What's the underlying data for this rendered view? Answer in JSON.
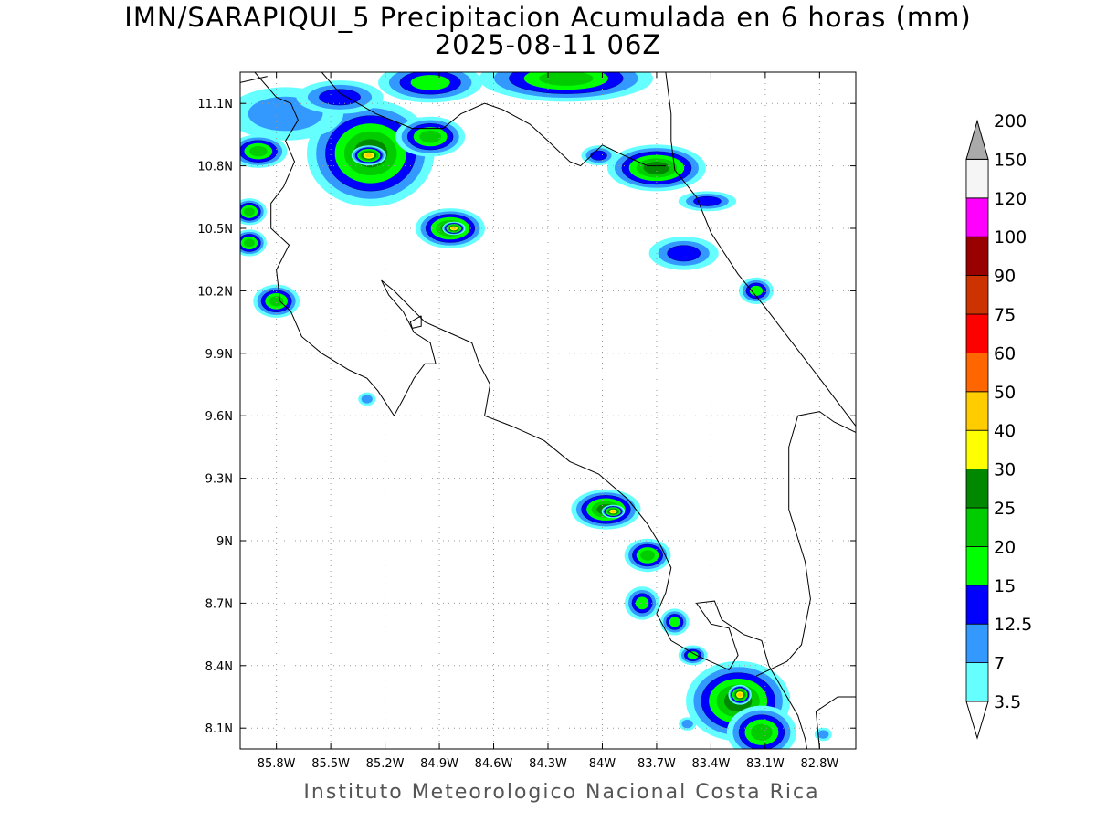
{
  "title_line1": "IMN/SARAPIQUI_5 Precipitacion Acumulada en 6 horas (mm)",
  "title_line2": "2025-08-11 06Z",
  "footer": "Instituto Meteorologico Nacional Costa Rica",
  "map": {
    "lon_min": -86.0,
    "lon_max": -82.6,
    "lat_min": 8.0,
    "lat_max": 11.25,
    "lon_ticks": [
      {
        "value": -85.8,
        "label": "85.8W"
      },
      {
        "value": -85.5,
        "label": "85.5W"
      },
      {
        "value": -85.2,
        "label": "85.2W"
      },
      {
        "value": -84.9,
        "label": "84.9W"
      },
      {
        "value": -84.6,
        "label": "84.6W"
      },
      {
        "value": -84.3,
        "label": "84.3W"
      },
      {
        "value": -84.0,
        "label": "84W"
      },
      {
        "value": -83.7,
        "label": "83.7W"
      },
      {
        "value": -83.4,
        "label": "83.4W"
      },
      {
        "value": -83.1,
        "label": "83.1W"
      },
      {
        "value": -82.8,
        "label": "82.8W"
      }
    ],
    "lat_ticks": [
      {
        "value": 11.1,
        "label": "11.1N"
      },
      {
        "value": 10.8,
        "label": "10.8N"
      },
      {
        "value": 10.5,
        "label": "10.5N"
      },
      {
        "value": 10.2,
        "label": "10.2N"
      },
      {
        "value": 9.9,
        "label": "9.9N"
      },
      {
        "value": 9.6,
        "label": "9.6N"
      },
      {
        "value": 9.3,
        "label": "9.3N"
      },
      {
        "value": 9.0,
        "label": "9N"
      },
      {
        "value": 8.7,
        "label": "8.7N"
      },
      {
        "value": 8.4,
        "label": "8.4N"
      },
      {
        "value": 8.1,
        "label": "8.1N"
      }
    ],
    "coastlines": [
      [
        [
          -85.92,
          11.25
        ],
        [
          -85.8,
          11.13
        ],
        [
          -85.72,
          11.1
        ],
        [
          -85.68,
          11.02
        ],
        [
          -85.75,
          10.92
        ],
        [
          -85.7,
          10.82
        ],
        [
          -85.76,
          10.7
        ],
        [
          -85.83,
          10.62
        ],
        [
          -85.83,
          10.5
        ],
        [
          -85.73,
          10.42
        ],
        [
          -85.8,
          10.3
        ],
        [
          -85.78,
          10.15
        ],
        [
          -85.72,
          10.1
        ],
        [
          -85.66,
          9.98
        ],
        [
          -85.55,
          9.9
        ],
        [
          -85.4,
          9.82
        ],
        [
          -85.3,
          9.78
        ],
        [
          -85.24,
          9.72
        ],
        [
          -85.15,
          9.6
        ],
        [
          -85.1,
          9.68
        ],
        [
          -85.04,
          9.78
        ],
        [
          -84.98,
          9.85
        ],
        [
          -84.92,
          9.85
        ],
        [
          -84.95,
          9.95
        ],
        [
          -85.04,
          10.0
        ],
        [
          -85.1,
          10.1
        ],
        [
          -85.18,
          10.18
        ],
        [
          -85.22,
          10.25
        ],
        [
          -85.15,
          10.2
        ],
        [
          -84.98,
          10.05
        ],
        [
          -84.85,
          10.0
        ],
        [
          -84.72,
          9.95
        ],
        [
          -84.68,
          9.85
        ],
        [
          -84.62,
          9.75
        ],
        [
          -84.65,
          9.6
        ],
        [
          -84.5,
          9.55
        ],
        [
          -84.32,
          9.48
        ],
        [
          -84.18,
          9.38
        ],
        [
          -84.02,
          9.32
        ],
        [
          -83.86,
          9.2
        ],
        [
          -83.75,
          9.08
        ],
        [
          -83.68,
          8.98
        ],
        [
          -83.62,
          8.87
        ],
        [
          -83.65,
          8.75
        ],
        [
          -83.7,
          8.65
        ],
        [
          -83.62,
          8.52
        ],
        [
          -83.48,
          8.45
        ],
        [
          -83.3,
          8.38
        ],
        [
          -83.25,
          8.45
        ],
        [
          -83.3,
          8.58
        ],
        [
          -83.4,
          8.6
        ],
        [
          -83.48,
          8.7
        ],
        [
          -83.38,
          8.71
        ],
        [
          -83.34,
          8.62
        ],
        [
          -83.22,
          8.55
        ],
        [
          -83.12,
          8.52
        ],
        [
          -83.08,
          8.4
        ],
        [
          -83.0,
          8.28
        ],
        [
          -82.92,
          8.16
        ],
        [
          -82.88,
          8.05
        ],
        [
          -82.87,
          8.0
        ]
      ],
      [
        [
          -82.8,
          8.0
        ],
        [
          -82.82,
          8.18
        ],
        [
          -82.7,
          8.25
        ],
        [
          -82.6,
          8.25
        ]
      ],
      [
        [
          -83.15,
          8.35
        ],
        [
          -82.98,
          8.42
        ],
        [
          -82.9,
          8.5
        ],
        [
          -82.85,
          8.72
        ],
        [
          -82.88,
          8.9
        ],
        [
          -82.97,
          9.15
        ],
        [
          -82.97,
          9.45
        ],
        [
          -82.92,
          9.6
        ],
        [
          -82.8,
          9.62
        ],
        [
          -82.72,
          9.57
        ],
        [
          -82.6,
          9.52
        ]
      ],
      [
        [
          -86.0,
          11.2
        ],
        [
          -85.85,
          11.23
        ]
      ],
      [
        [
          -85.55,
          11.25
        ],
        [
          -85.45,
          11.15
        ],
        [
          -85.25,
          11.05
        ],
        [
          -85.05,
          10.98
        ],
        [
          -84.88,
          10.98
        ],
        [
          -84.78,
          11.05
        ],
        [
          -84.65,
          11.1
        ],
        [
          -84.55,
          11.07
        ],
        [
          -84.4,
          11.0
        ],
        [
          -84.3,
          10.92
        ],
        [
          -84.18,
          10.82
        ],
        [
          -84.12,
          10.8
        ],
        [
          -84.0,
          10.9
        ],
        [
          -83.88,
          10.85
        ],
        [
          -83.75,
          10.8
        ],
        [
          -83.65,
          10.8
        ]
      ],
      [
        [
          -83.65,
          11.25
        ],
        [
          -83.62,
          11.05
        ],
        [
          -83.62,
          10.92
        ],
        [
          -83.6,
          10.78
        ],
        [
          -83.48,
          10.65
        ],
        [
          -83.4,
          10.48
        ],
        [
          -83.25,
          10.28
        ],
        [
          -83.1,
          10.12
        ],
        [
          -82.95,
          9.95
        ],
        [
          -82.8,
          9.78
        ],
        [
          -82.6,
          9.55
        ]
      ]
    ],
    "lakes": [
      [
        [
          -85.0,
          10.08
        ],
        [
          -85.06,
          10.05
        ],
        [
          -85.05,
          10.02
        ],
        [
          -85.0,
          10.03
        ],
        [
          -85.0,
          10.08
        ]
      ]
    ],
    "precip_cells": [
      {
        "lon": -85.28,
        "lat": 10.86,
        "rx": 0.22,
        "ry": 0.16,
        "level": 25
      },
      {
        "lon": -84.95,
        "lat": 10.94,
        "rx": 0.12,
        "ry": 0.06,
        "level": 20
      },
      {
        "lon": -85.75,
        "lat": 11.05,
        "rx": 0.2,
        "ry": 0.08,
        "level": 7
      },
      {
        "lon": -85.45,
        "lat": 11.13,
        "rx": 0.15,
        "ry": 0.05,
        "level": 12.5
      },
      {
        "lon": -84.95,
        "lat": 11.2,
        "rx": 0.18,
        "ry": 0.06,
        "level": 15
      },
      {
        "lon": -84.2,
        "lat": 11.22,
        "rx": 0.3,
        "ry": 0.07,
        "level": 20
      },
      {
        "lon": -83.7,
        "lat": 10.79,
        "rx": 0.17,
        "ry": 0.07,
        "level": 25
      },
      {
        "lon": -83.55,
        "lat": 10.38,
        "rx": 0.12,
        "ry": 0.05,
        "level": 12.5
      },
      {
        "lon": -84.84,
        "lat": 10.5,
        "rx": 0.12,
        "ry": 0.06,
        "level": 25
      },
      {
        "lon": -85.9,
        "lat": 10.87,
        "rx": 0.1,
        "ry": 0.05,
        "level": 20
      },
      {
        "lon": -85.95,
        "lat": 10.58,
        "rx": 0.06,
        "ry": 0.04,
        "level": 20
      },
      {
        "lon": -85.95,
        "lat": 10.43,
        "rx": 0.06,
        "ry": 0.04,
        "level": 20
      },
      {
        "lon": -85.8,
        "lat": 10.15,
        "rx": 0.08,
        "ry": 0.05,
        "level": 20
      },
      {
        "lon": -83.15,
        "lat": 10.2,
        "rx": 0.06,
        "ry": 0.04,
        "level": 15
      },
      {
        "lon": -83.98,
        "lat": 9.15,
        "rx": 0.12,
        "ry": 0.06,
        "level": 25
      },
      {
        "lon": -83.75,
        "lat": 8.93,
        "rx": 0.08,
        "ry": 0.05,
        "level": 20
      },
      {
        "lon": -83.78,
        "lat": 8.7,
        "rx": 0.06,
        "ry": 0.05,
        "level": 15
      },
      {
        "lon": -83.6,
        "lat": 8.61,
        "rx": 0.05,
        "ry": 0.04,
        "level": 15
      },
      {
        "lon": -83.5,
        "lat": 8.45,
        "rx": 0.05,
        "ry": 0.03,
        "level": 15
      },
      {
        "lon": -83.25,
        "lat": 8.23,
        "rx": 0.18,
        "ry": 0.12,
        "level": 25
      },
      {
        "lon": -83.12,
        "lat": 8.08,
        "rx": 0.12,
        "ry": 0.08,
        "level": 20
      },
      {
        "lon": -84.02,
        "lat": 10.85,
        "rx": 0.06,
        "ry": 0.03,
        "level": 12.5
      },
      {
        "lon": -83.42,
        "lat": 10.63,
        "rx": 0.1,
        "ry": 0.03,
        "level": 12.5
      },
      {
        "lon": -85.29,
        "lat": 10.85,
        "rx": 0.06,
        "ry": 0.03,
        "level": 40
      },
      {
        "lon": -84.82,
        "lat": 10.5,
        "rx": 0.04,
        "ry": 0.02,
        "level": 40
      },
      {
        "lon": -83.94,
        "lat": 9.14,
        "rx": 0.04,
        "ry": 0.02,
        "level": 40
      },
      {
        "lon": -83.24,
        "lat": 8.26,
        "rx": 0.04,
        "ry": 0.03,
        "level": 40
      },
      {
        "lon": -85.3,
        "lat": 9.68,
        "rx": 0.03,
        "ry": 0.02,
        "level": 7
      },
      {
        "lon": -83.53,
        "lat": 8.12,
        "rx": 0.03,
        "ry": 0.02,
        "level": 7
      },
      {
        "lon": -82.78,
        "lat": 8.07,
        "rx": 0.03,
        "ry": 0.02,
        "level": 7
      }
    ]
  },
  "colorbar": {
    "levels": [
      {
        "label": "3.5",
        "color": "#66ffff"
      },
      {
        "label": "7",
        "color": "#3399ff"
      },
      {
        "label": "12.5",
        "color": "#0000ff"
      },
      {
        "label": "15",
        "color": "#00ff00"
      },
      {
        "label": "20",
        "color": "#00cc00"
      },
      {
        "label": "25",
        "color": "#008800"
      },
      {
        "label": "30",
        "color": "#ffff00"
      },
      {
        "label": "40",
        "color": "#ffcc00"
      },
      {
        "label": "50",
        "color": "#ff6600"
      },
      {
        "label": "60",
        "color": "#ff0000"
      },
      {
        "label": "75",
        "color": "#cc3300"
      },
      {
        "label": "90",
        "color": "#990000"
      },
      {
        "label": "100",
        "color": "#ff00ff"
      },
      {
        "label": "120",
        "color": "#9933cc"
      },
      {
        "label": "150",
        "color": "#f5f5f5"
      },
      {
        "label": "200",
        "color": "#aaaaaa"
      }
    ]
  }
}
